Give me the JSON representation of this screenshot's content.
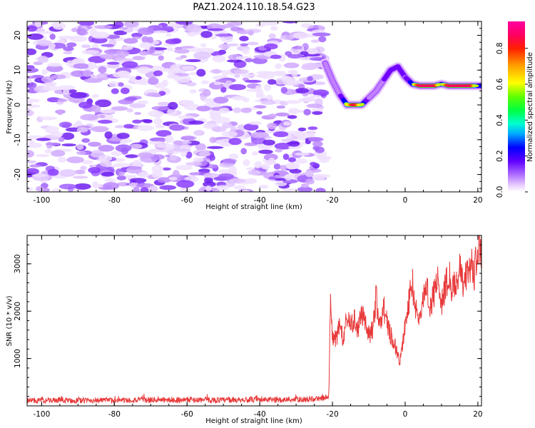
{
  "title": "PAZ1.2024.110.18.54.G23",
  "chart_data": [
    {
      "type": "heatmap",
      "xlabel": "Height of straight line (km)",
      "ylabel": "Frequency (Hz)",
      "xlim": [
        -104,
        21
      ],
      "ylim": [
        -25,
        24
      ],
      "xticks": [
        "-100",
        "-80",
        "-60",
        "-40",
        "-20",
        "0",
        "20"
      ],
      "yticks": [
        "20",
        "10",
        "0",
        "-10",
        "-20"
      ],
      "colorbar": {
        "label": "Normalized spectral amplitude",
        "range": [
          0.0,
          0.95
        ],
        "ticks": [
          "0.0",
          "0.2",
          "0.4",
          "0.6",
          "0.8"
        ],
        "colormap": [
          "#ffffff",
          "#e8ccff",
          "#c080ff",
          "#7000ff",
          "#0000ff",
          "#00c8ff",
          "#00ff80",
          "#40ff00",
          "#c0ff00",
          "#ffff00",
          "#ffa000",
          "#ff3000",
          "#ff0060",
          "#ff00a0"
        ]
      },
      "noise_region_x": [
        -104,
        -22
      ],
      "ridge": {
        "x": [
          -22,
          -20,
          -18,
          -16,
          -14,
          -12,
          -10,
          -8,
          -6,
          -4,
          -2,
          0,
          2,
          4,
          6,
          8,
          10,
          12,
          14,
          16,
          18,
          20,
          21
        ],
        "freq": [
          12,
          7,
          3,
          0,
          0,
          0,
          2,
          4,
          7,
          10,
          11,
          8,
          6,
          5.5,
          5.5,
          5.5,
          6,
          5.5,
          5.5,
          5.5,
          5.5,
          5.5,
          5.5
        ],
        "amp": [
          0.2,
          0.3,
          0.3,
          0.6,
          0.9,
          0.6,
          0.3,
          0.3,
          0.3,
          0.4,
          0.4,
          0.3,
          0.5,
          0.9,
          0.9,
          0.9,
          0.5,
          0.9,
          0.9,
          0.9,
          0.9,
          0.5,
          0.5
        ]
      }
    },
    {
      "type": "line",
      "xlabel": "Height of straight line (km)",
      "ylabel": "SNR (10 * v/v)",
      "xlim": [
        -104,
        21
      ],
      "ylim": [
        0,
        3600
      ],
      "xticks": [
        "-100",
        "-80",
        "-60",
        "-40",
        "-20",
        "0",
        "20"
      ],
      "yticks": [
        "1000",
        "2000",
        "3000"
      ],
      "series": [
        {
          "color": "#e8393a",
          "x": [
            -104,
            -100,
            -95,
            -90,
            -85,
            -80,
            -75,
            -70,
            -65,
            -60,
            -55,
            -50,
            -45,
            -40,
            -35,
            -30,
            -25,
            -21,
            -20.6,
            -20,
            -19,
            -18,
            -17,
            -16,
            -15,
            -14,
            -13,
            -12,
            -11,
            -10,
            -9,
            -8,
            -7,
            -6,
            -5,
            -4,
            -3,
            -2,
            -1.5,
            -1,
            0,
            1,
            2,
            3,
            4,
            5,
            6,
            7,
            8,
            9,
            10,
            11,
            12,
            13,
            14,
            15,
            16,
            17,
            18,
            19,
            20,
            21
          ],
          "y": [
            120,
            110,
            120,
            110,
            120,
            115,
            120,
            125,
            120,
            130,
            125,
            120,
            130,
            125,
            130,
            135,
            140,
            180,
            2200,
            1500,
            1400,
            1750,
            1350,
            1900,
            1650,
            1800,
            1600,
            2000,
            1700,
            1500,
            1600,
            2300,
            1700,
            2100,
            1800,
            1500,
            1300,
            1100,
            900,
            1150,
            1700,
            2200,
            2600,
            2000,
            1800,
            2300,
            2500,
            2100,
            2400,
            2700,
            2200,
            2500,
            2800,
            2400,
            2600,
            2900,
            2500,
            2800,
            3000,
            2800,
            3200,
            3400
          ]
        }
      ]
    }
  ]
}
